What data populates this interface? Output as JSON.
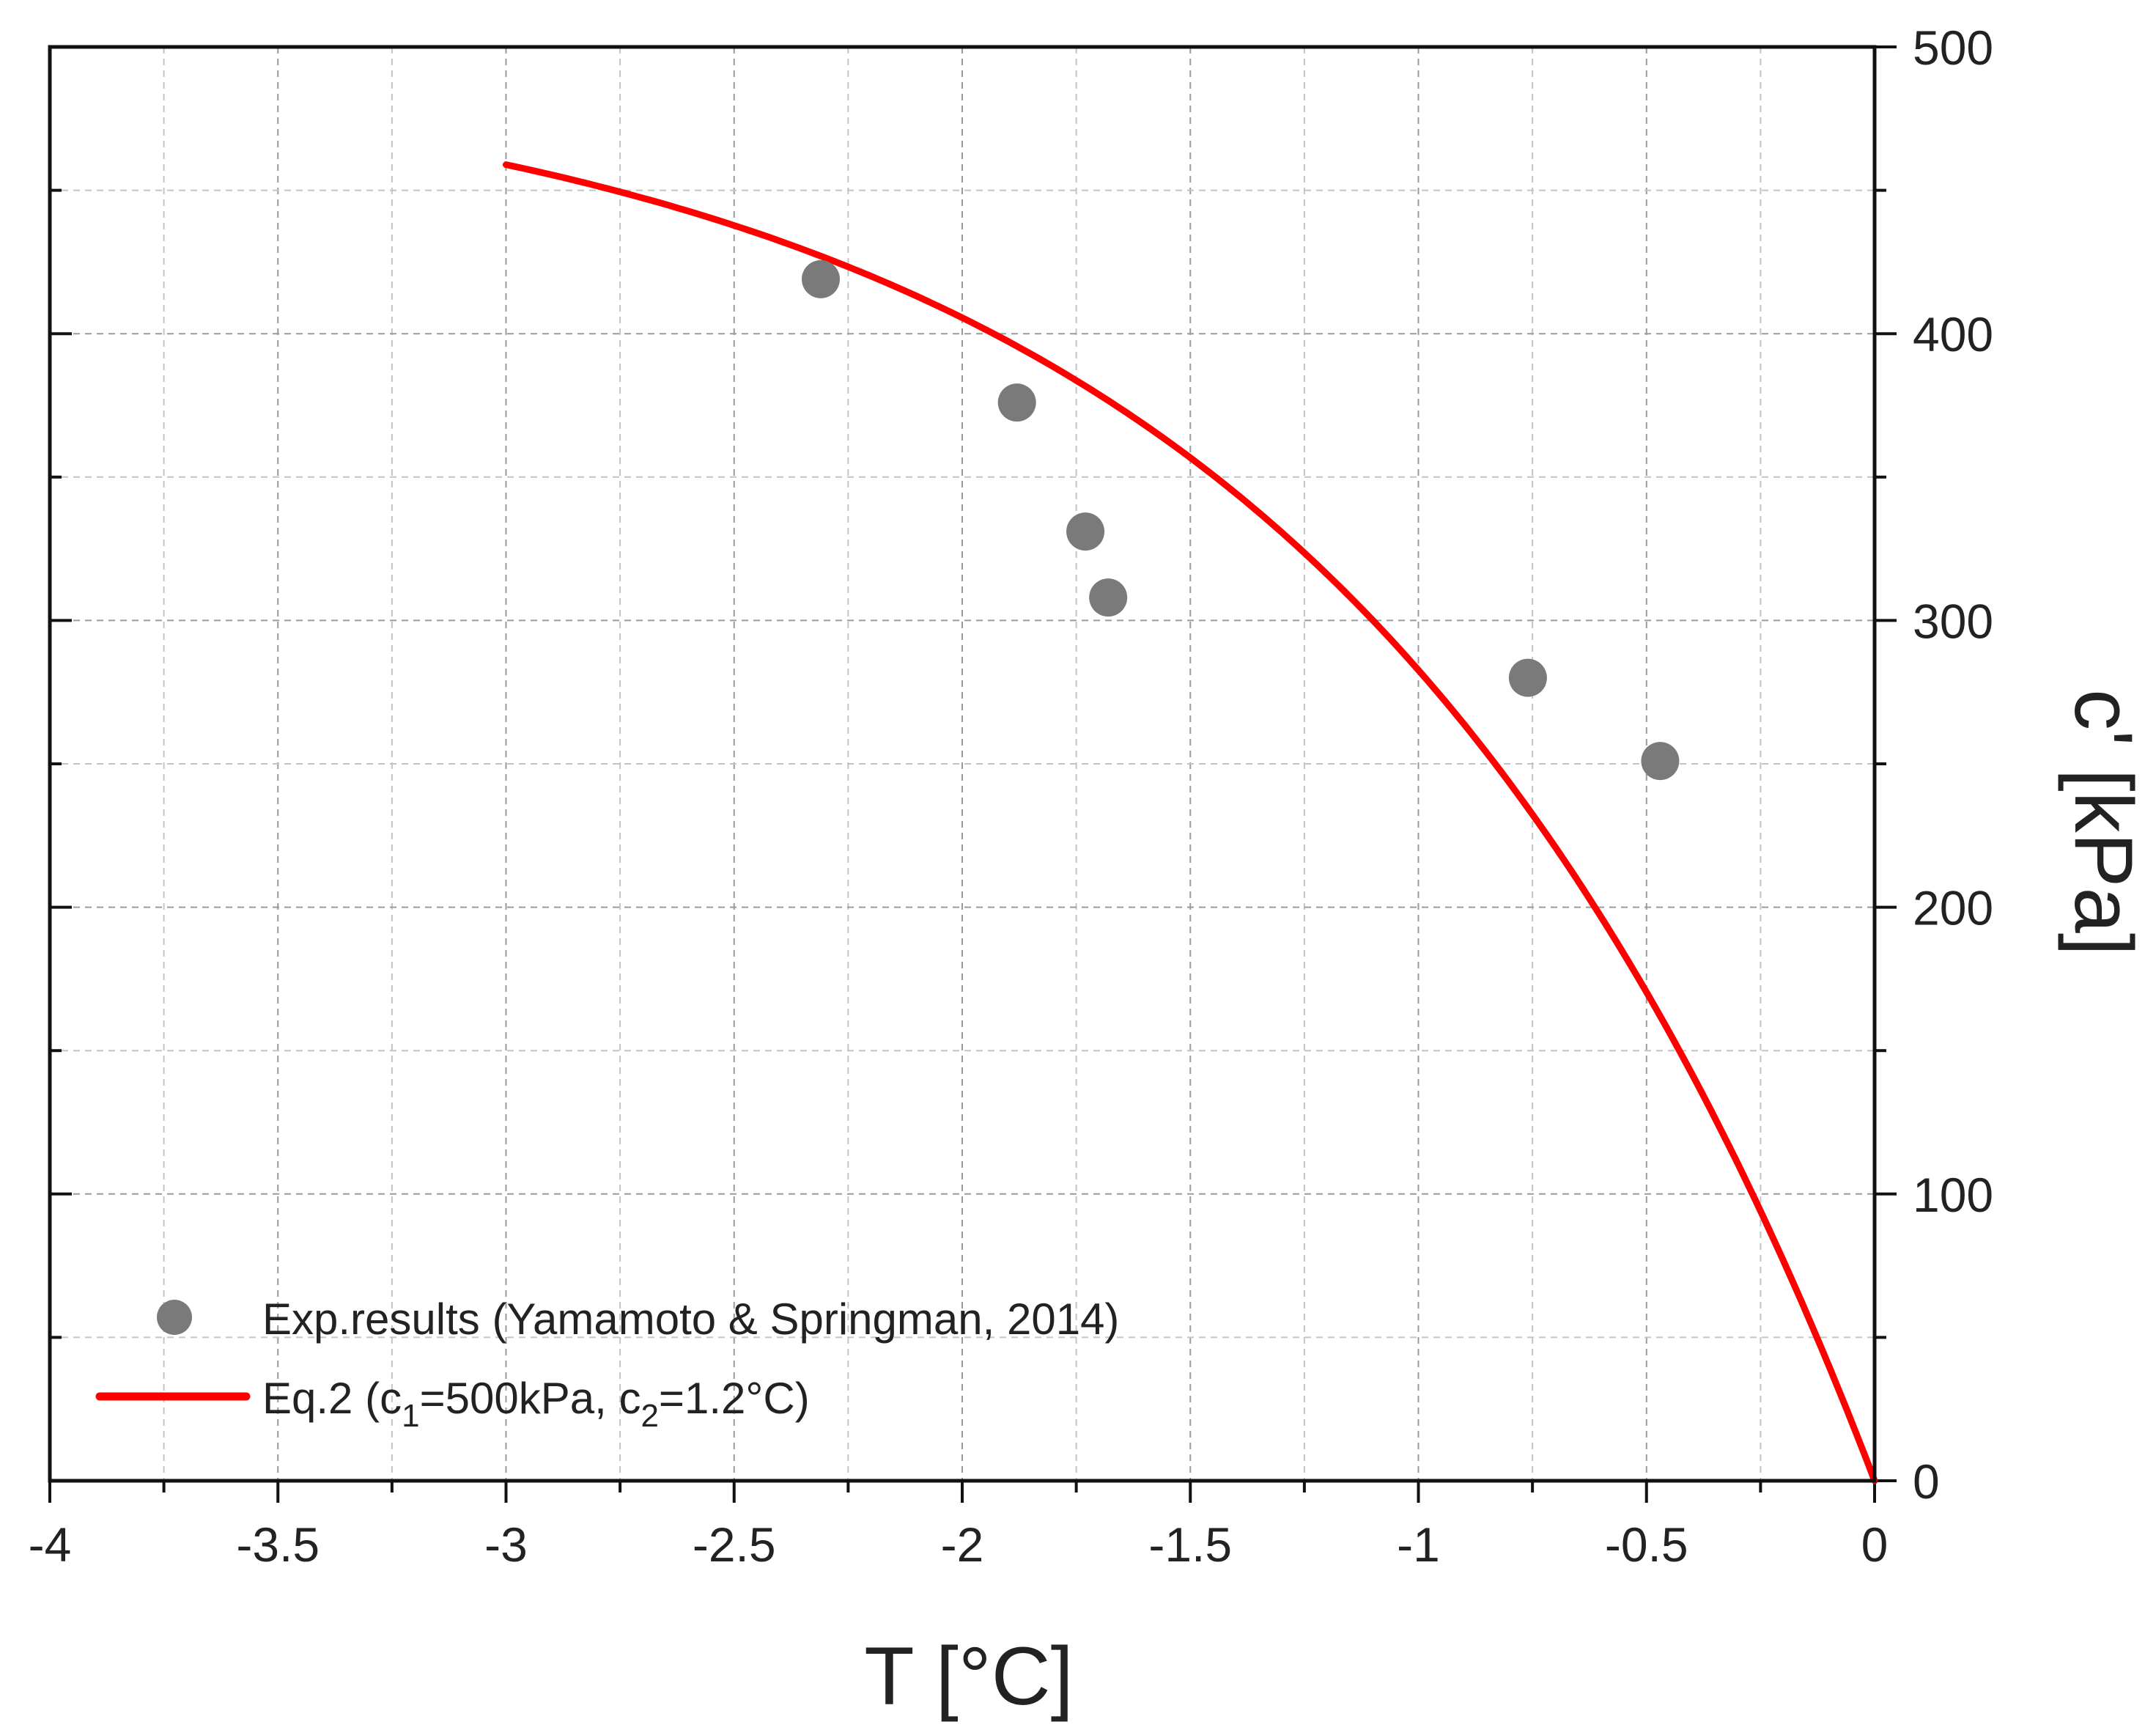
{
  "chart_data": {
    "type": "scatter+line",
    "xlabel": "T [°C]",
    "ylabel": "c' [kPa]",
    "xlim": [
      -4,
      0
    ],
    "ylim": [
      0,
      500
    ],
    "x_ticks": [
      -4,
      -3.5,
      -3,
      -2.5,
      -2,
      -1.5,
      -1,
      -0.5,
      0
    ],
    "x_tick_labels": [
      "-4",
      "-3.5",
      "-3",
      "-2.5",
      "-2",
      "-1.5",
      "-1",
      "-0.5",
      "0"
    ],
    "y_ticks": [
      0,
      100,
      200,
      300,
      400,
      500
    ],
    "y_tick_labels": [
      "0",
      "100",
      "200",
      "300",
      "400",
      "500"
    ],
    "grid": true,
    "legend_position": "bottom-left",
    "series": [
      {
        "name": "Exp.results (Yamamoto & Springman, 2014)",
        "kind": "scatter",
        "color": "#7a7a7a",
        "points": [
          {
            "x": -2.31,
            "y": 419
          },
          {
            "x": -1.88,
            "y": 376
          },
          {
            "x": -1.73,
            "y": 331
          },
          {
            "x": -1.68,
            "y": 308
          },
          {
            "x": -0.76,
            "y": 280
          },
          {
            "x": -0.47,
            "y": 251
          }
        ]
      },
      {
        "name": "Eq.2 (c1=500kPa, c2=1.2°C)",
        "kind": "line",
        "color": "#ff0000",
        "c1": 500,
        "c2": 1.2,
        "x_range": [
          -3,
          0
        ]
      }
    ],
    "legend": {
      "scatter_label": "Exp.results (Yamamoto & Springman, 2014)",
      "line_prefix": "Eq.2 (c",
      "line_sub1": "1",
      "line_mid": "=500kPa, c",
      "line_sub2": "2",
      "line_suffix": "=1.2°C)"
    }
  }
}
